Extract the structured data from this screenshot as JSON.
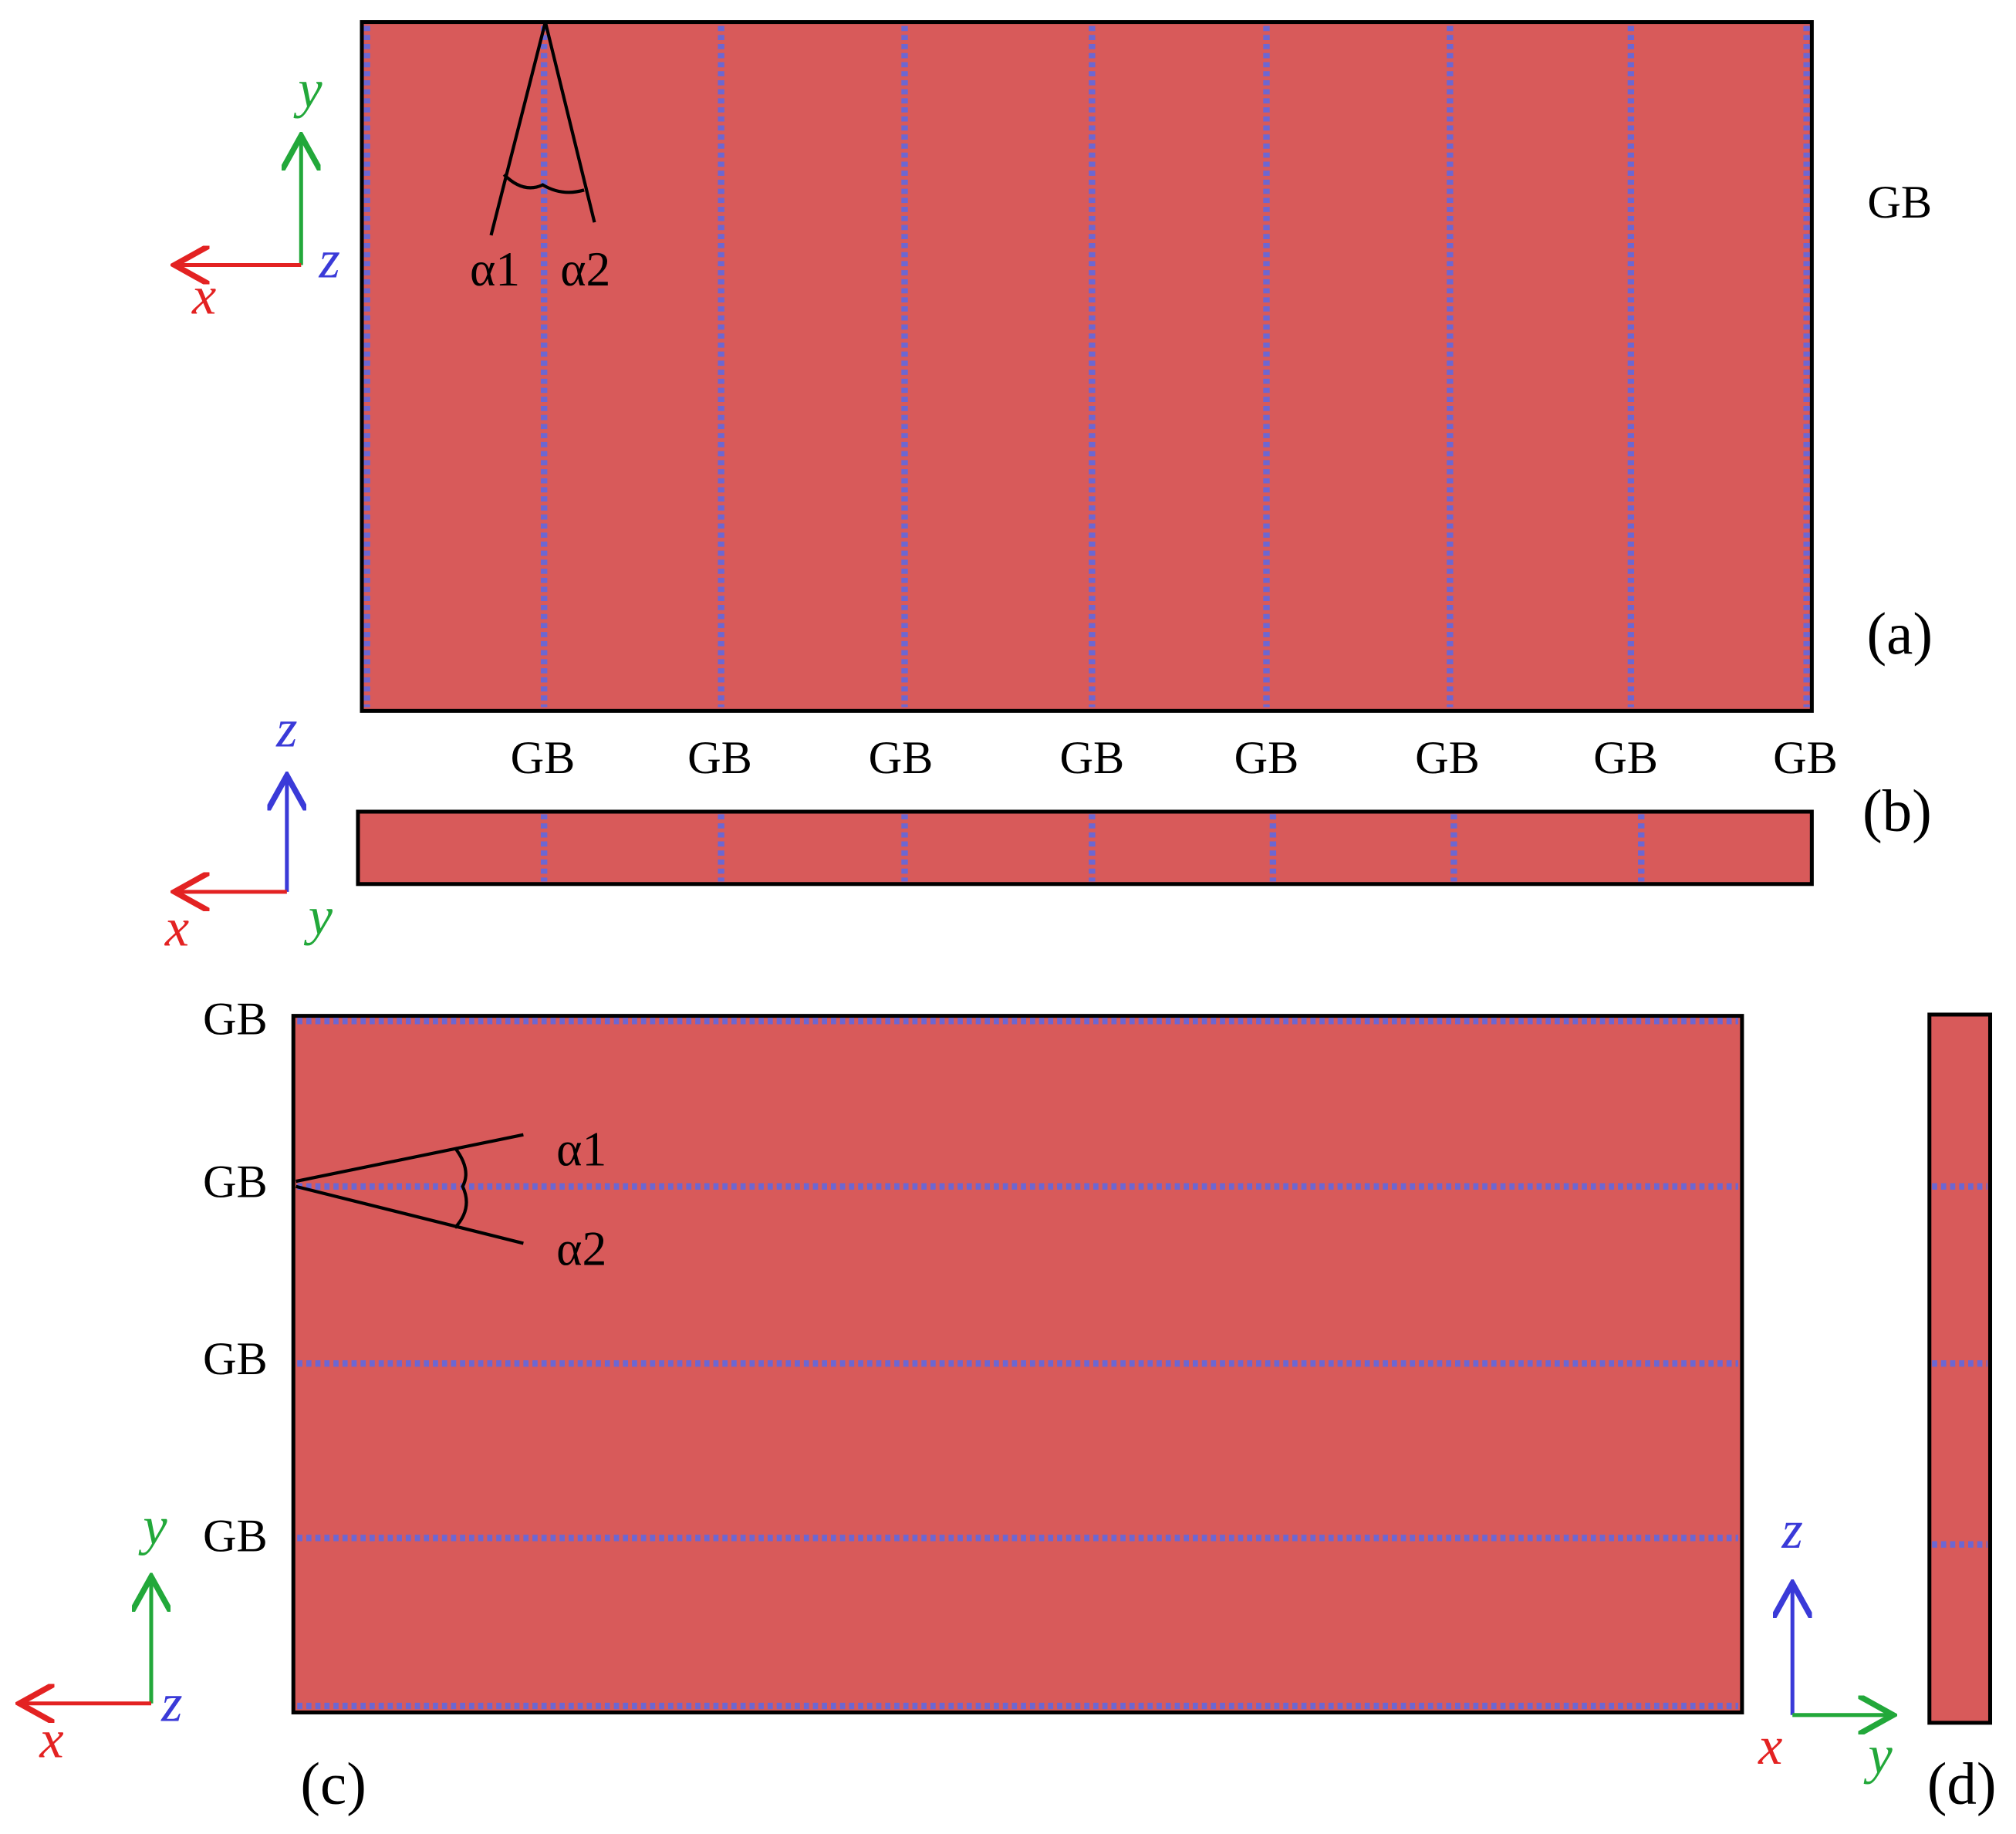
{
  "panel_a": {
    "label": "(a)",
    "gb": "GB",
    "angles": [
      "α1",
      "α2"
    ],
    "axes": [
      "y",
      "x",
      "z"
    ]
  },
  "panel_b": {
    "label": "(b)",
    "gb": [
      "GB",
      "GB",
      "GB",
      "GB",
      "GB",
      "GB",
      "GB",
      "GB"
    ],
    "axes": [
      "z",
      "x",
      "y"
    ]
  },
  "panel_c": {
    "label": "(c)",
    "gb": [
      "GB",
      "GB",
      "GB",
      "GB"
    ],
    "angles": [
      "α1",
      "α2"
    ],
    "axes": [
      "y",
      "x",
      "z"
    ]
  },
  "panel_d": {
    "label": "(d)",
    "axes": [
      "z",
      "x",
      "y"
    ]
  }
}
